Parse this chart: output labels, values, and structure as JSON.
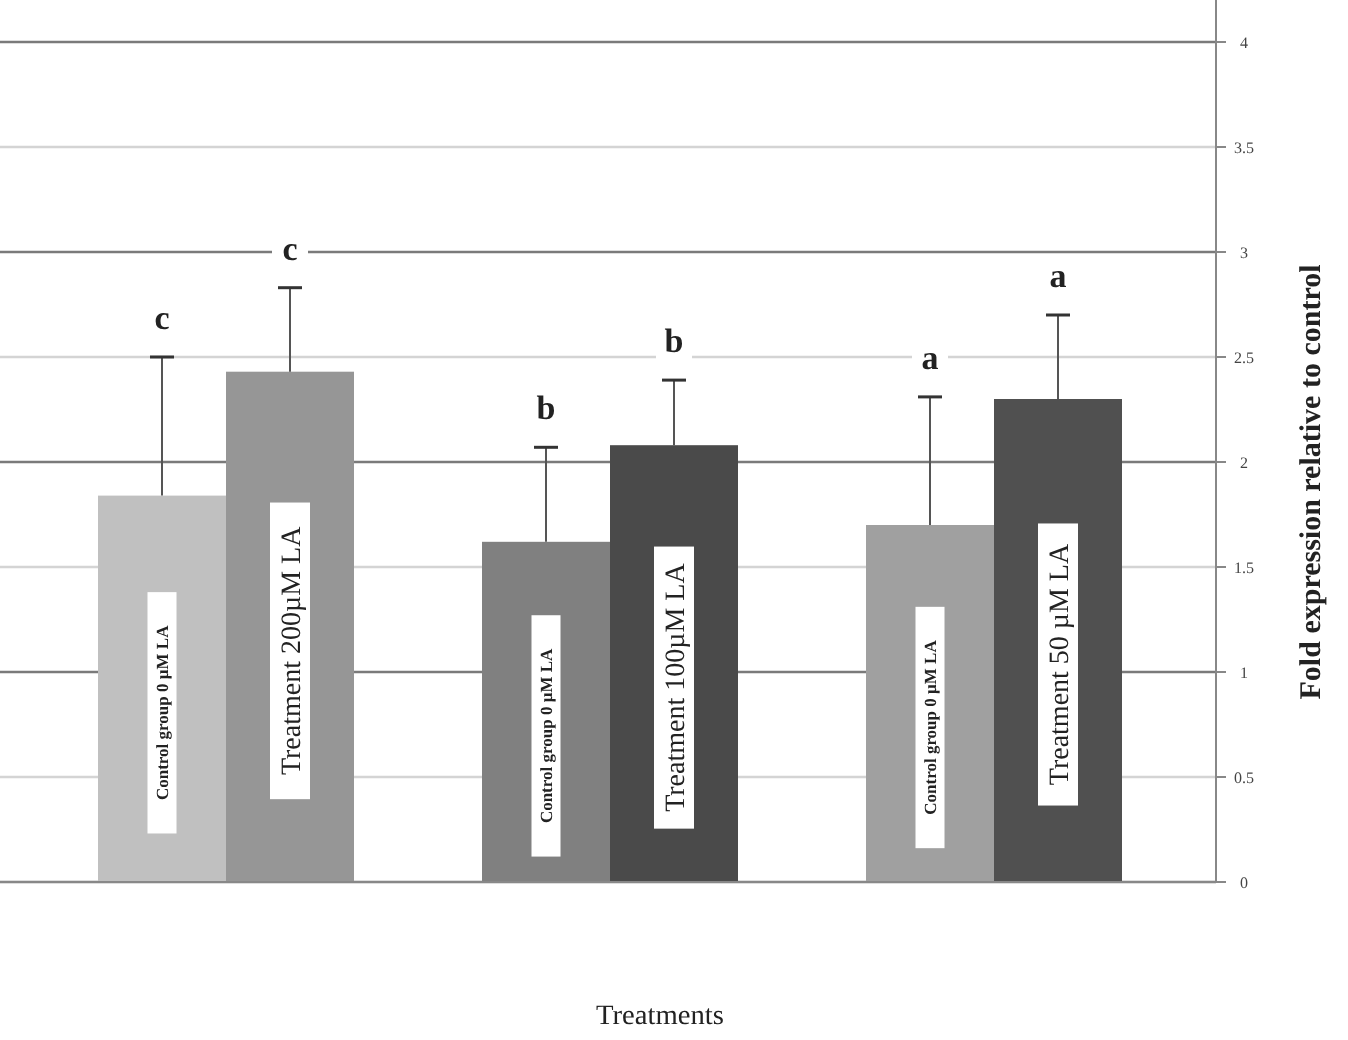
{
  "chart_data": {
    "type": "bar",
    "xlabel": "Treatments",
    "ylabel": "Fold expression relative to control",
    "categories": [
      "Control group 0 µM LA",
      "Treatment  200µM LA",
      "Control group 0 µM LA",
      "Treatment 100µM LA",
      "Control group 0 µM LA",
      "Treatment 50 µM LA"
    ],
    "values": [
      1.84,
      2.43,
      1.62,
      2.08,
      1.7,
      2.3
    ],
    "colors": [
      "#c0c0c0",
      "#969696",
      "#808080",
      "#4a4a4a",
      "#a0a0a0",
      "#505050"
    ],
    "errors": [
      [
        1.84,
        2.5
      ],
      [
        2.43,
        2.83
      ],
      [
        1.62,
        2.07
      ],
      [
        2.08,
        2.39
      ],
      [
        1.7,
        2.31
      ],
      [
        2.3,
        2.7
      ]
    ],
    "annotations": [
      "c",
      "c",
      "b",
      "b",
      "a",
      "a"
    ],
    "ylim": [
      0,
      4
    ],
    "yticks": [
      0,
      0.5,
      1,
      1.5,
      2,
      2.5,
      3,
      3.5,
      4
    ],
    "grid": "y"
  }
}
